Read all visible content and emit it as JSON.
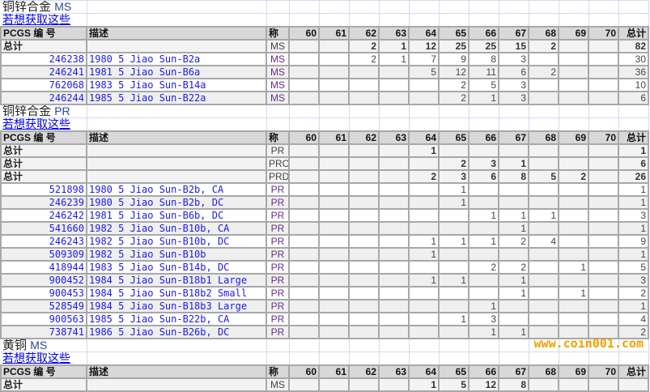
{
  "columns": {
    "pcgs": "PCGS 编 号",
    "desc": "描述",
    "grade": "称",
    "grades": [
      "60",
      "61",
      "62",
      "63",
      "64",
      "65",
      "66",
      "67",
      "68",
      "69",
      "70"
    ],
    "total": "总计"
  },
  "total_label": "总计",
  "link_label": "若想获取这些",
  "sections": [
    {
      "title_cn": "铜锌合金",
      "title_en": "MS",
      "totals": [
        {
          "grade": "MS",
          "counts": [
            "",
            "",
            "2",
            "1",
            "12",
            "25",
            "25",
            "15",
            "2",
            "",
            ""
          ],
          "total": "82"
        }
      ],
      "rows": [
        {
          "id": "246238",
          "desc": "1980 5 Jiao Sun-B2a",
          "grade": "MS",
          "counts": [
            "",
            "",
            "2",
            "1",
            "7",
            "9",
            "8",
            "3",
            "",
            "",
            ""
          ],
          "total": "30"
        },
        {
          "id": "246241",
          "desc": "1981 5 Jiao Sun-B6a",
          "grade": "MS",
          "counts": [
            "",
            "",
            "",
            "",
            "5",
            "12",
            "11",
            "6",
            "2",
            "",
            ""
          ],
          "total": "36"
        },
        {
          "id": "762068",
          "desc": "1983 5 Jiao Sun-B14a",
          "grade": "MS",
          "counts": [
            "",
            "",
            "",
            "",
            "",
            "2",
            "5",
            "3",
            "",
            "",
            ""
          ],
          "total": "10"
        },
        {
          "id": "246244",
          "desc": "1985 5 Jiao Sun-B22a",
          "grade": "MS",
          "counts": [
            "",
            "",
            "",
            "",
            "",
            "2",
            "1",
            "3",
            "",
            "",
            ""
          ],
          "total": "6"
        }
      ]
    },
    {
      "title_cn": "铜锌合金",
      "title_en": "PR",
      "totals": [
        {
          "grade": "PR",
          "counts": [
            "",
            "",
            "",
            "",
            "1",
            "",
            "",
            "",
            "",
            "",
            ""
          ],
          "total": "1"
        },
        {
          "grade": "PRC",
          "counts": [
            "",
            "",
            "",
            "",
            "",
            "2",
            "3",
            "1",
            "",
            "",
            ""
          ],
          "total": "6"
        },
        {
          "grade": "PRD",
          "counts": [
            "",
            "",
            "",
            "",
            "2",
            "3",
            "6",
            "8",
            "5",
            "2",
            ""
          ],
          "total": "26"
        }
      ],
      "rows": [
        {
          "id": "521898",
          "desc": "1980 5 Jiao Sun-B2b, CA",
          "grade": "PR",
          "counts": [
            "",
            "",
            "",
            "",
            "",
            "1",
            "",
            "",
            "",
            "",
            ""
          ],
          "total": "1"
        },
        {
          "id": "246239",
          "desc": "1980 5 Jiao Sun-B2b, DC",
          "grade": "PR",
          "counts": [
            "",
            "",
            "",
            "",
            "",
            "1",
            "",
            "",
            "",
            "",
            ""
          ],
          "total": "1"
        },
        {
          "id": "246242",
          "desc": "1981 5 Jiao Sun-B6b, DC",
          "grade": "PR",
          "counts": [
            "",
            "",
            "",
            "",
            "",
            "",
            "1",
            "1",
            "1",
            "",
            ""
          ],
          "total": "3"
        },
        {
          "id": "541660",
          "desc": "1982 5 Jiao Sun-B10b, CA",
          "grade": "PR",
          "counts": [
            "",
            "",
            "",
            "",
            "",
            "",
            "",
            "1",
            "",
            "",
            ""
          ],
          "total": "1"
        },
        {
          "id": "246243",
          "desc": "1982 5 Jiao Sun-B10b, DC",
          "grade": "PR",
          "counts": [
            "",
            "",
            "",
            "",
            "1",
            "1",
            "1",
            "2",
            "4",
            "",
            ""
          ],
          "total": "9"
        },
        {
          "id": "509309",
          "desc": "1982 5 Jiao Sun-B10b",
          "grade": "PR",
          "counts": [
            "",
            "",
            "",
            "",
            "1",
            "",
            "",
            "",
            "",
            "",
            ""
          ],
          "total": "1"
        },
        {
          "id": "418944",
          "desc": "1983 5 Jiao Sun-B14b, DC",
          "grade": "PR",
          "counts": [
            "",
            "",
            "",
            "",
            "",
            "",
            "2",
            "2",
            "",
            "1",
            ""
          ],
          "total": "5"
        },
        {
          "id": "900452",
          "desc": "1984 5 Jiao Sun-B18b1 Large",
          "grade": "PR",
          "counts": [
            "",
            "",
            "",
            "",
            "1",
            "1",
            "",
            "1",
            "",
            "",
            ""
          ],
          "total": "3"
        },
        {
          "id": "900453",
          "desc": "1984 5 Jiao Sun-B18b2 Small",
          "grade": "PR",
          "counts": [
            "",
            "",
            "",
            "",
            "",
            "",
            "",
            "1",
            "",
            "1",
            ""
          ],
          "total": "2"
        },
        {
          "id": "528549",
          "desc": "1984 5 Jiao Sun-B18b3 Large",
          "grade": "PR",
          "counts": [
            "",
            "",
            "",
            "",
            "",
            "",
            "1",
            "",
            "",
            "",
            ""
          ],
          "total": "1"
        },
        {
          "id": "900563",
          "desc": "1985 5 Jiao Sun-B22b, CA",
          "grade": "PR",
          "counts": [
            "",
            "",
            "",
            "",
            "",
            "1",
            "3",
            "",
            "",
            "",
            ""
          ],
          "total": "4"
        },
        {
          "id": "738741",
          "desc": "1986 5 Jiao Sun-B26b, DC",
          "grade": "PR",
          "counts": [
            "",
            "",
            "",
            "",
            "",
            "",
            "1",
            "1",
            "",
            "",
            ""
          ],
          "total": "2"
        }
      ]
    },
    {
      "title_cn": "黄铜",
      "title_en": "MS",
      "totals": [
        {
          "grade": "MS",
          "counts": [
            "",
            "",
            "",
            "",
            "1",
            "5",
            "12",
            "8",
            "",
            "",
            ""
          ],
          "total": ""
        }
      ],
      "rows": []
    }
  ],
  "watermark": "www.coin001.com",
  "colors": {
    "link": "#0000ee",
    "header_bg": "#d8d8d8",
    "alt_row": "#efefef",
    "watermark": "#f0a000"
  }
}
